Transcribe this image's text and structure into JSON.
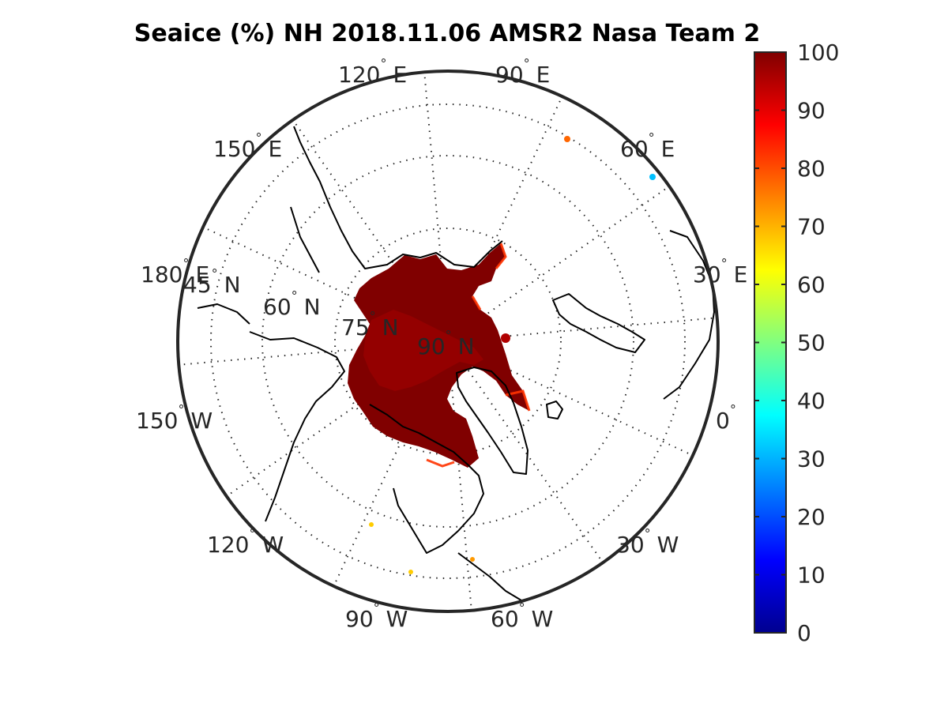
{
  "title": "Seaice (%) NH 2018.11.06 AMSR2 Nasa Team 2",
  "projection": "north-polar-stereographic",
  "degree_symbol": "°",
  "longitude_labels": [
    {
      "value": "120",
      "hemi": "E"
    },
    {
      "value": "90",
      "hemi": "E"
    },
    {
      "value": "150",
      "hemi": "E"
    },
    {
      "value": "60",
      "hemi": "E"
    },
    {
      "value": "180",
      "hemi": "E"
    },
    {
      "value": "30",
      "hemi": "E"
    },
    {
      "value": "150",
      "hemi": "W"
    },
    {
      "value": "0",
      "hemi": ""
    },
    {
      "value": "120",
      "hemi": "W"
    },
    {
      "value": "30",
      "hemi": "W"
    },
    {
      "value": "90",
      "hemi": "W"
    },
    {
      "value": "60",
      "hemi": "W"
    }
  ],
  "latitude_labels": [
    {
      "value": "45",
      "hemi": "N"
    },
    {
      "value": "60",
      "hemi": "N"
    },
    {
      "value": "75",
      "hemi": "N"
    },
    {
      "value": "90",
      "hemi": "N"
    }
  ],
  "colorbar": {
    "min": 0,
    "max": 100,
    "ticks": [
      "100",
      "90",
      "80",
      "70",
      "60",
      "50",
      "40",
      "30",
      "20",
      "10",
      "0"
    ],
    "colormap": "jet",
    "colors": [
      "#00008f",
      "#0000ff",
      "#0080ff",
      "#00ffff",
      "#80ff80",
      "#ffff00",
      "#ff8000",
      "#ff0000",
      "#800000"
    ]
  },
  "colors": {
    "ice": "#800000",
    "ice_light": "#b80000",
    "ice_edge": "#ff4000",
    "coast": "#000000",
    "frame": "#262626",
    "grid": "#262626"
  }
}
